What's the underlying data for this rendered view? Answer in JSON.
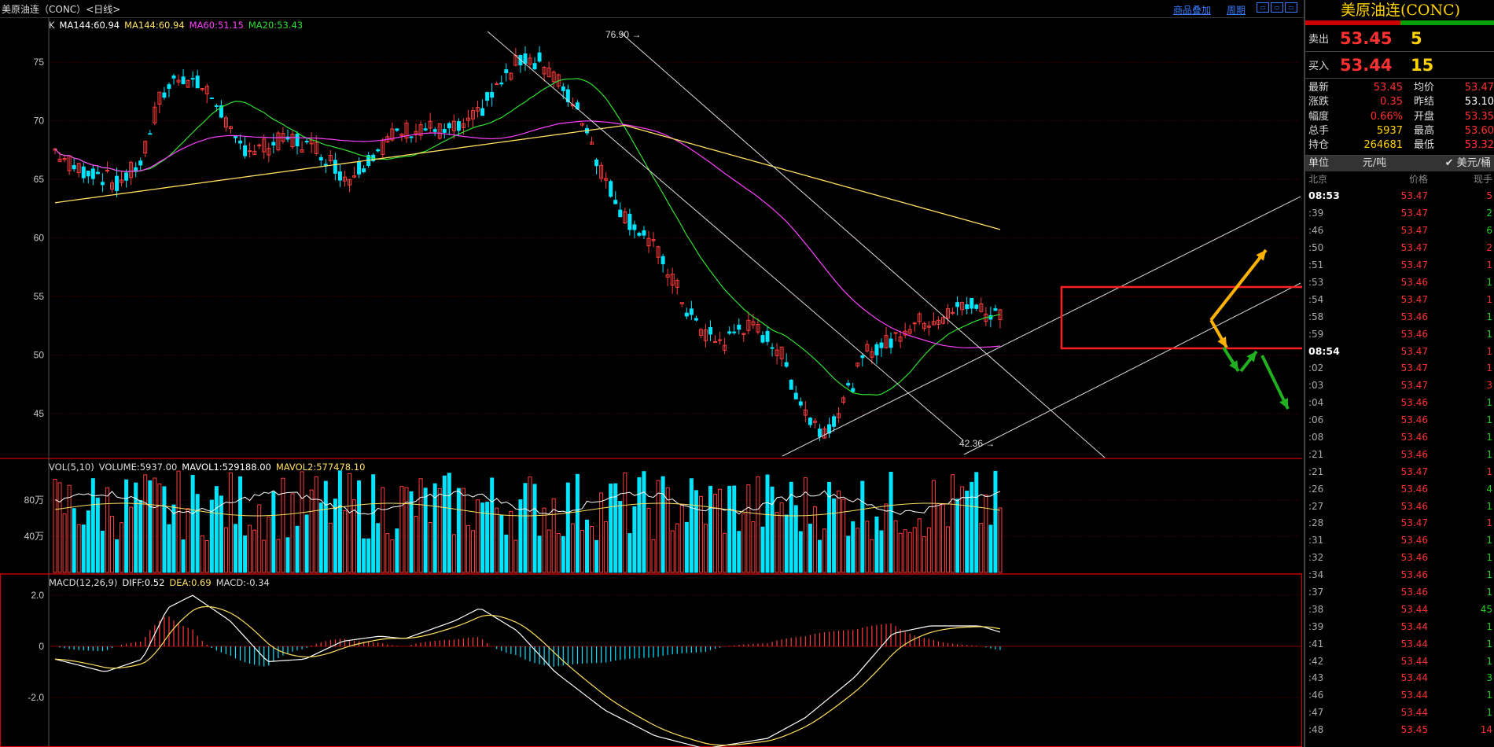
{
  "window": {
    "title": "美原油连（CONC）<日线>",
    "links": [
      "商品叠加",
      "周期"
    ]
  },
  "kline": {
    "legend": [
      {
        "text": "K",
        "color": "#dddddd"
      },
      {
        "text": "MA144:60.94",
        "color": "#ffffff"
      },
      {
        "text": "MA144:60.94",
        "color": "#ffe060"
      },
      {
        "text": "MA60:51.15",
        "color": "#ff40ff"
      },
      {
        "text": "MA20:53.43",
        "color": "#30e030"
      }
    ],
    "yticks": [
      "75",
      "70",
      "65",
      "60",
      "55",
      "50",
      "45"
    ],
    "high_label": "76.90",
    "low_label": "42.36"
  },
  "volume": {
    "legend": [
      {
        "text": "VOL(5,10)",
        "color": "#dddddd"
      },
      {
        "text": "VOLUME:5937.00",
        "color": "#dddddd"
      },
      {
        "text": "MAVOL1:529188.00",
        "color": "#ffffff"
      },
      {
        "text": "MAVOL2:577478.10",
        "color": "#ffe060"
      }
    ],
    "yticks": [
      "80万",
      "40万"
    ]
  },
  "macd": {
    "legend": [
      {
        "text": "MACD(12,26,9)",
        "color": "#dddddd"
      },
      {
        "text": "DIFF:0.52",
        "color": "#ffffff"
      },
      {
        "text": "DEA:0.69",
        "color": "#ffe060"
      },
      {
        "text": "MACD:-0.34",
        "color": "#dddddd"
      }
    ],
    "yticks": [
      "2.0",
      "0",
      "-2.0"
    ]
  },
  "panel": {
    "title": "美原油连(CONC)",
    "sell": {
      "label": "卖出",
      "price": "53.45",
      "qty": "5"
    },
    "buy": {
      "label": "买入",
      "price": "53.44",
      "qty": "15"
    },
    "stats": [
      {
        "k": "最新",
        "v": "53.45",
        "vc": "red",
        "k2": "均价",
        "v2": "53.47",
        "v2c": "red"
      },
      {
        "k": "涨跌",
        "v": "0.35",
        "vc": "red",
        "k2": "昨结",
        "v2": "53.10",
        "v2c": "wht"
      },
      {
        "k": "幅度",
        "v": "0.66%",
        "vc": "red",
        "k2": "开盘",
        "v2": "53.35",
        "v2c": "red"
      },
      {
        "k": "总手",
        "v": "5937",
        "vc": "ylw",
        "k2": "最高",
        "v2": "53.60",
        "v2c": "red"
      },
      {
        "k": "持仓",
        "v": "264681",
        "vc": "ylw",
        "k2": "最低",
        "v2": "53.32",
        "v2c": "red"
      }
    ],
    "unit": {
      "label": "单位",
      "v1": "元/吨",
      "v2": "✔ 美元/桶"
    },
    "thead": {
      "t": "北京",
      "p": "价格",
      "q": "现手"
    },
    "ticks": [
      {
        "t": "08:53",
        "b": true,
        "p": "53.47",
        "q": "5",
        "qc": "red"
      },
      {
        "t": ":39",
        "p": "53.47",
        "q": "2",
        "qc": "grn"
      },
      {
        "t": ":46",
        "p": "53.47",
        "q": "6",
        "qc": "grn"
      },
      {
        "t": ":50",
        "p": "53.47",
        "q": "2",
        "qc": "red"
      },
      {
        "t": ":51",
        "p": "53.47",
        "q": "1",
        "qc": "red"
      },
      {
        "t": ":53",
        "p": "53.46",
        "q": "1",
        "qc": "grn"
      },
      {
        "t": ":54",
        "p": "53.47",
        "q": "1",
        "qc": "red"
      },
      {
        "t": ":58",
        "p": "53.46",
        "q": "1",
        "qc": "grn"
      },
      {
        "t": ":59",
        "p": "53.46",
        "q": "1",
        "qc": "grn"
      },
      {
        "t": "08:54",
        "b": true,
        "p": "53.47",
        "q": "1",
        "qc": "red"
      },
      {
        "t": ":02",
        "p": "53.47",
        "q": "1",
        "qc": "red"
      },
      {
        "t": ":03",
        "p": "53.47",
        "q": "3",
        "qc": "red"
      },
      {
        "t": ":04",
        "p": "53.46",
        "q": "1",
        "qc": "grn"
      },
      {
        "t": ":06",
        "p": "53.46",
        "q": "1",
        "qc": "grn"
      },
      {
        "t": ":08",
        "p": "53.46",
        "q": "1",
        "qc": "grn"
      },
      {
        "t": ":21",
        "p": "53.46",
        "q": "1",
        "qc": "grn"
      },
      {
        "t": ":21",
        "p": "53.47",
        "q": "1",
        "qc": "red"
      },
      {
        "t": ":26",
        "p": "53.46",
        "q": "4",
        "qc": "grn"
      },
      {
        "t": ":27",
        "p": "53.46",
        "q": "1",
        "qc": "grn"
      },
      {
        "t": ":28",
        "p": "53.47",
        "q": "1",
        "qc": "red"
      },
      {
        "t": ":31",
        "p": "53.46",
        "q": "1",
        "qc": "grn"
      },
      {
        "t": ":32",
        "p": "53.46",
        "q": "1",
        "qc": "grn"
      },
      {
        "t": ":34",
        "p": "53.46",
        "q": "1",
        "qc": "grn"
      },
      {
        "t": ":37",
        "p": "53.46",
        "q": "1",
        "qc": "grn"
      },
      {
        "t": ":38",
        "p": "53.44",
        "q": "45",
        "qc": "grn"
      },
      {
        "t": ":39",
        "p": "53.44",
        "q": "1",
        "qc": "grn"
      },
      {
        "t": ":41",
        "p": "53.44",
        "q": "1",
        "qc": "grn"
      },
      {
        "t": ":42",
        "p": "53.44",
        "q": "1",
        "qc": "grn"
      },
      {
        "t": ":43",
        "p": "53.44",
        "q": "3",
        "qc": "grn"
      },
      {
        "t": ":46",
        "p": "53.44",
        "q": "1",
        "qc": "grn"
      },
      {
        "t": ":47",
        "p": "53.44",
        "q": "1",
        "qc": "grn"
      },
      {
        "t": ":48",
        "p": "53.45",
        "q": "14",
        "qc": "red"
      }
    ]
  }
}
